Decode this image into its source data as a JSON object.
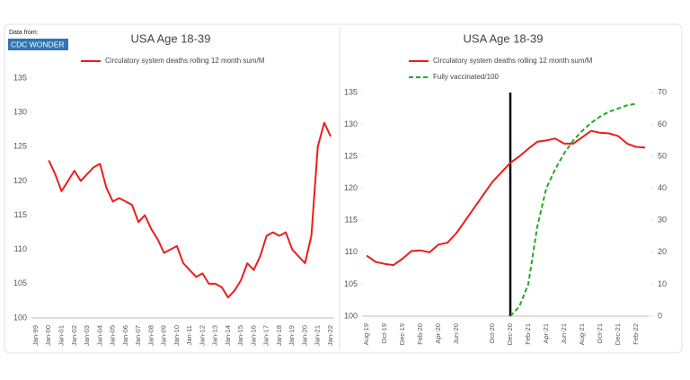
{
  "chart_data": [
    {
      "type": "line",
      "title": "USA Age 18-39",
      "source_label": "Data from:",
      "source": "CDC WONDER",
      "categories": [
        "Jan-99",
        null,
        "Jan-00",
        null,
        "Jan-01",
        null,
        "Jan-02",
        null,
        "Jan-03",
        null,
        "Jan-04",
        null,
        "Jan-05",
        null,
        "Jan-06",
        null,
        "Jan-07",
        null,
        "Jan-08",
        null,
        "Jan-09",
        null,
        "Jan-10",
        null,
        "Jan-11",
        null,
        "Jan-12",
        null,
        "Jan-13",
        null,
        "Jan-14",
        null,
        "Jan-15",
        null,
        "Jan-16",
        null,
        "Jan-17",
        null,
        "Jan-18",
        null,
        "Jan-19",
        null,
        "Jan-20",
        null,
        "Jan-21",
        null,
        "Jan-22"
      ],
      "series": [
        {
          "name": "Circulatory system deaths rolling 12 month sum/M",
          "color": "#ee1c1c",
          "style": "solid",
          "values": [
            null,
            null,
            123,
            121,
            118.5,
            120,
            121.5,
            120,
            121,
            122,
            122.5,
            119,
            117,
            117.5,
            117,
            116.5,
            114,
            115,
            113,
            111.5,
            109.5,
            110,
            110.5,
            108,
            107,
            106,
            106.5,
            105,
            105,
            104.5,
            103,
            104,
            105.5,
            108,
            107,
            109,
            112,
            112.5,
            112,
            112.5,
            110,
            109,
            108,
            112,
            125,
            128.5,
            126.5
          ]
        }
      ],
      "ylim": [
        100,
        135
      ],
      "yticks": [
        100,
        105,
        110,
        115,
        120,
        125,
        130,
        135
      ]
    },
    {
      "type": "line",
      "title": "USA Age 18-39",
      "categories": [
        "Aug-19",
        null,
        "Oct-19",
        null,
        "Dec-19",
        null,
        "Feb-20",
        null,
        "Apr-20",
        null,
        "Jun-20",
        null,
        null,
        null,
        "Oct-20",
        null,
        "Dec-20",
        null,
        "Feb-21",
        null,
        "Apr-21",
        null,
        "Jun-21",
        null,
        "Aug-21",
        null,
        "Oct-21",
        null,
        "Dec-21",
        null,
        "Feb-22",
        null
      ],
      "series": [
        {
          "name": "Circulatory system deaths rolling 12 month sum/M",
          "color": "#ee1c1c",
          "style": "solid",
          "values": [
            109.5,
            108.5,
            108.2,
            108,
            109,
            110.2,
            110.3,
            110,
            111.2,
            111.5,
            113,
            115,
            117,
            119,
            121,
            122.5,
            124,
            125,
            126.2,
            127.3,
            127.5,
            127.8,
            127,
            127,
            128,
            129,
            128.7,
            128.6,
            128.2,
            127,
            126.5,
            126.4
          ]
        },
        {
          "name": "Fully vaccinated/100",
          "color": "#22aa22",
          "style": "dashed",
          "axis": "y2",
          "values": [
            null,
            null,
            null,
            null,
            null,
            null,
            null,
            null,
            null,
            null,
            null,
            null,
            null,
            null,
            null,
            null,
            0,
            3,
            10,
            28,
            40,
            46,
            51,
            55,
            58,
            60.5,
            62.5,
            64,
            65,
            66,
            66.5,
            null
          ]
        }
      ],
      "vline": "Dec-20",
      "ylim": [
        100,
        135
      ],
      "yticks": [
        100,
        105,
        110,
        115,
        120,
        125,
        130,
        135
      ],
      "y2lim": [
        0,
        70
      ],
      "y2ticks": [
        0,
        10,
        20,
        30,
        40,
        50,
        60,
        70
      ]
    }
  ]
}
